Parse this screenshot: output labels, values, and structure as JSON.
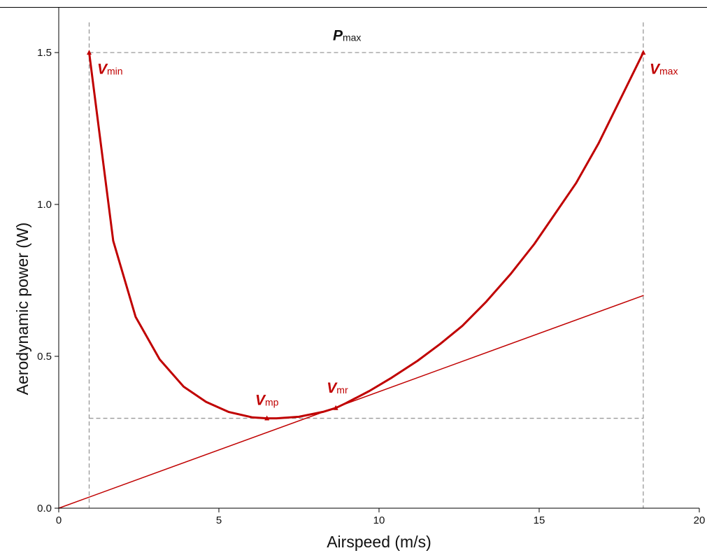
{
  "chart_data": {
    "type": "line",
    "xlabel": "Airspeed (m/s)",
    "ylabel": "Aerodynamic power (W)",
    "xlim": [
      0,
      20
    ],
    "ylim": [
      0,
      1.65
    ],
    "xticks": [
      "0",
      "5",
      "10",
      "15",
      "20"
    ],
    "yticks": [
      "0.0",
      "0.5",
      "1.0",
      "1.5"
    ],
    "grid": false,
    "colors": {
      "curve": "#c00000",
      "reference": "#999999",
      "axis": "#000000"
    },
    "series": [
      {
        "type": "line",
        "points": [
          [
            0.95,
            1.5
          ],
          [
            1.7,
            0.88
          ],
          [
            2.4,
            0.63
          ],
          [
            3.15,
            0.49
          ],
          [
            3.9,
            0.4
          ],
          [
            4.6,
            0.35
          ],
          [
            5.3,
            0.317
          ],
          [
            6.05,
            0.299
          ],
          [
            6.5,
            0.296
          ],
          [
            6.8,
            0.296
          ],
          [
            7.5,
            0.301
          ],
          [
            8.25,
            0.317
          ],
          [
            8.65,
            0.33
          ],
          [
            8.95,
            0.345
          ],
          [
            9.7,
            0.386
          ],
          [
            10.4,
            0.43
          ],
          [
            11.2,
            0.485
          ],
          [
            11.9,
            0.54
          ],
          [
            12.6,
            0.6
          ],
          [
            13.35,
            0.68
          ],
          [
            14.1,
            0.77
          ],
          [
            14.85,
            0.87
          ],
          [
            15.5,
            0.97
          ],
          [
            16.15,
            1.07
          ],
          [
            16.85,
            1.2
          ],
          [
            17.55,
            1.35
          ],
          [
            18.25,
            1.5
          ]
        ]
      },
      {
        "type": "line",
        "points": [
          [
            0,
            0
          ],
          [
            18.25,
            0.7
          ]
        ]
      }
    ],
    "reference_lines": {
      "vertical": [
        0.95,
        18.25
      ],
      "horizontal": [
        {
          "y": 1.5,
          "from": 0.95,
          "to": 18.25
        },
        {
          "y": 0.296,
          "from": 0.95,
          "to": 18.25
        }
      ]
    },
    "markers": [
      {
        "x": 0.95,
        "y": 1.5
      },
      {
        "x": 6.5,
        "y": 0.296
      },
      {
        "x": 8.65,
        "y": 0.33
      },
      {
        "x": 18.25,
        "y": 1.5
      }
    ],
    "annotations": [
      {
        "main": "V",
        "sub": "min",
        "x": 1.2,
        "y": 1.43,
        "color": "#c00000",
        "anchor": "start"
      },
      {
        "main": "V",
        "sub": "mp",
        "x": 6.5,
        "y": 0.34,
        "color": "#c00000",
        "anchor": "middle"
      },
      {
        "main": "V",
        "sub": "mr",
        "x": 8.7,
        "y": 0.38,
        "color": "#c00000",
        "anchor": "middle"
      },
      {
        "main": "V",
        "sub": "max",
        "x": 18.45,
        "y": 1.43,
        "color": "#c00000",
        "anchor": "start"
      },
      {
        "main": "P",
        "sub": "max",
        "x": 9.0,
        "y": 1.54,
        "color": "#111111",
        "anchor": "middle"
      }
    ]
  }
}
